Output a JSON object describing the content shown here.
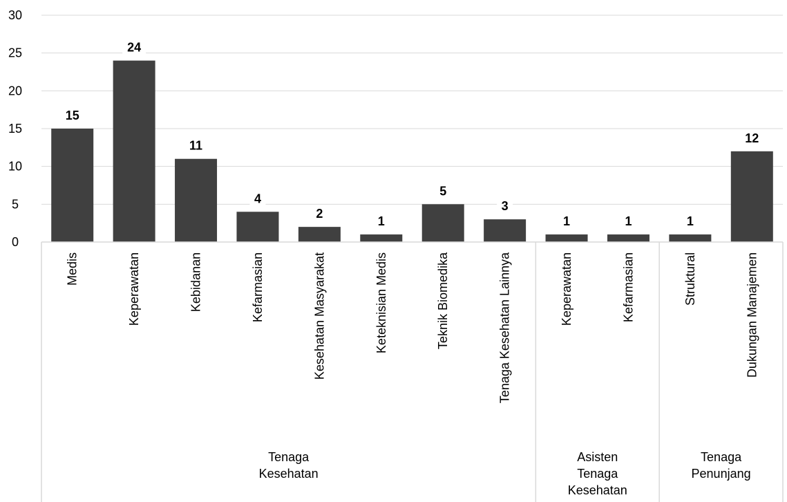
{
  "chart_data": {
    "type": "bar",
    "title": "",
    "xlabel": "",
    "ylabel": "",
    "ylim": [
      0,
      30
    ],
    "yticks": [
      0,
      5,
      10,
      15,
      20,
      25,
      30
    ],
    "grid": true,
    "legend": "none",
    "bar_color": "#404040",
    "grid_color": "#d9d9d9",
    "categories": [
      "Medis",
      "Keperawatan",
      "Kebidanan",
      "Kefarmasian",
      "Kesehatan Masyarakat",
      "Keteknisian Medis",
      "Teknik Biomedika",
      "Tenaga Kesehatan Lainnya",
      "Keperawatan",
      "Kefarmasian",
      "Struktural",
      "Dukungan Manajemen"
    ],
    "values": [
      15,
      24,
      11,
      4,
      2,
      1,
      5,
      3,
      1,
      1,
      1,
      12
    ],
    "groups": [
      {
        "lines": [
          "Tenaga",
          "Kesehatan"
        ],
        "start": 0,
        "end": 7
      },
      {
        "lines": [
          "Asisten",
          "Tenaga",
          "Kesehatan"
        ],
        "start": 8,
        "end": 9
      },
      {
        "lines": [
          "Tenaga",
          "Penunjang"
        ],
        "start": 10,
        "end": 11
      }
    ]
  }
}
